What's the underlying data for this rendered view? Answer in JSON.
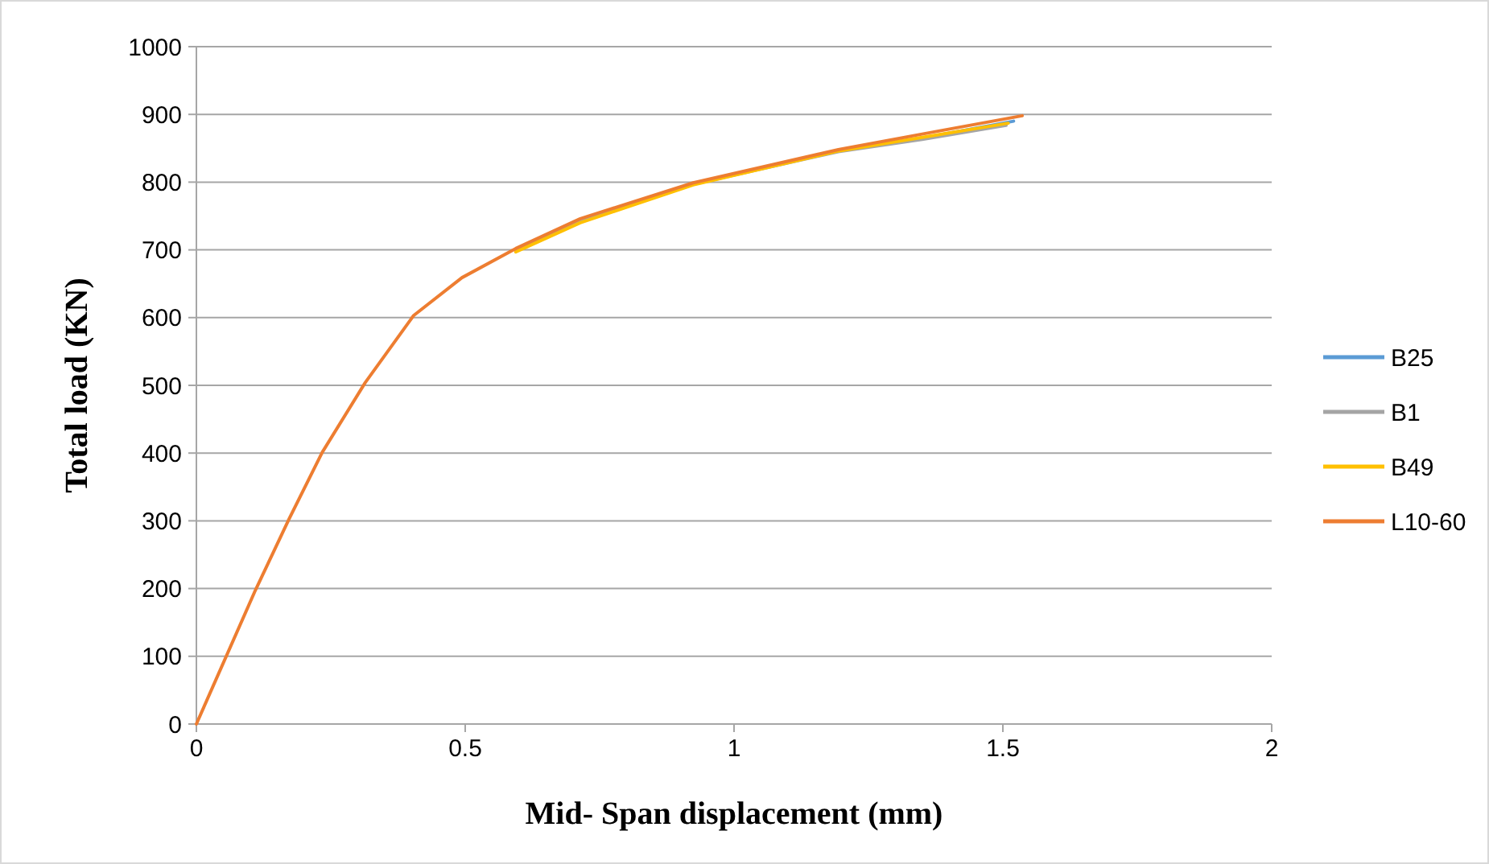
{
  "chart_data": {
    "type": "line",
    "xlabel": "Mid- Span displacement (mm)",
    "ylabel": "Total load (KN)",
    "xlim": [
      0,
      2
    ],
    "ylim": [
      0,
      1000
    ],
    "xticks": [
      0,
      0.5,
      1,
      1.5,
      2
    ],
    "yticks": [
      0,
      100,
      200,
      300,
      400,
      500,
      600,
      700,
      800,
      900,
      1000
    ],
    "grid": "y",
    "legend": "right",
    "marker": "none",
    "line_style": "solid",
    "series": [
      {
        "name": "B25",
        "color": "#5b9bd5",
        "x": [
          1.35,
          1.52
        ],
        "values": [
          865,
          890
        ]
      },
      {
        "name": "B1",
        "color": "#a5a5a5",
        "x": [
          0.594,
          0.714,
          0.924,
          1.194,
          1.35,
          1.506
        ],
        "values": [
          700,
          742,
          797,
          845,
          863,
          884
        ]
      },
      {
        "name": "B49",
        "color": "#ffc000",
        "x": [
          0.594,
          0.714,
          0.924,
          1.194,
          1.35,
          1.51
        ],
        "values": [
          697,
          740,
          796,
          846,
          866,
          887
        ]
      },
      {
        "name": "L10-60",
        "color": "#ed7d31",
        "x": [
          0,
          0.11,
          0.172,
          0.234,
          0.314,
          0.404,
          0.494,
          0.594,
          0.714,
          0.924,
          1.194,
          1.35,
          1.536
        ],
        "values": [
          0,
          198,
          302,
          401,
          504,
          603,
          659,
          702,
          746,
          799,
          848,
          871,
          898
        ]
      }
    ]
  }
}
